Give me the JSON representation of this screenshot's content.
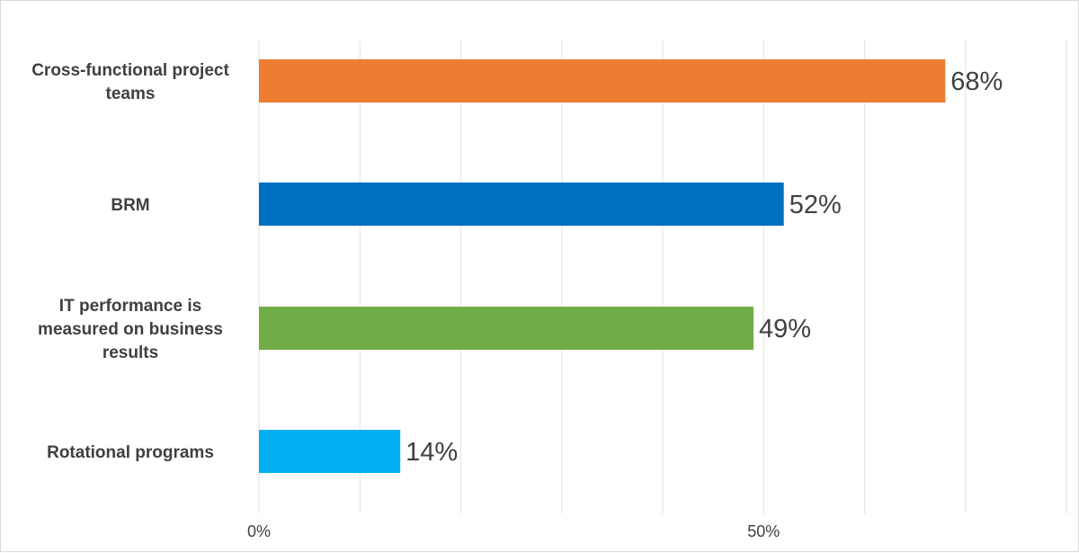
{
  "chart_data": {
    "type": "bar",
    "orientation": "horizontal",
    "categories": [
      [
        "Cross-functional project",
        "teams"
      ],
      [
        "BRM"
      ],
      [
        "IT performance is",
        "measured on business",
        "results"
      ],
      [
        "Rotational programs"
      ]
    ],
    "values": [
      68,
      52,
      49,
      14
    ],
    "value_labels": [
      "68%",
      "52%",
      "49%",
      "14%"
    ],
    "colors": [
      "#ED7D31",
      "#0070C0",
      "#70AD47",
      "#00B0F0"
    ],
    "xlim": [
      0,
      80
    ],
    "gridline_step": 10,
    "x_tick_labels": [
      {
        "value": 0,
        "label": "0%"
      },
      {
        "value": 50,
        "label": "50%"
      }
    ],
    "grid": true,
    "title": "",
    "xlabel": "",
    "ylabel": ""
  }
}
